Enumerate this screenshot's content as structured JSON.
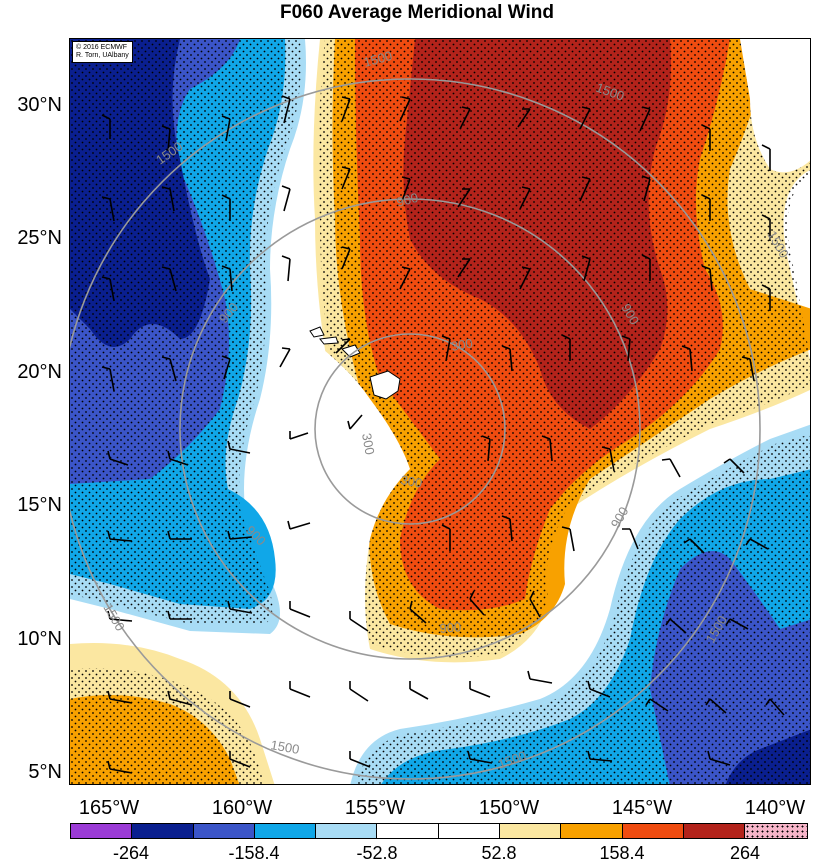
{
  "title": "F060 Average Meridional Wind",
  "credit": {
    "line1": "© 2016 ECMWF",
    "line2": "R. Torn, UAlbany"
  },
  "lat_labels": [
    "30°N",
    "25°N",
    "20°N",
    "15°N",
    "10°N",
    "5°N"
  ],
  "lon_labels": [
    "165°W",
    "160°W",
    "155°W",
    "150°W",
    "145°W",
    "140°W"
  ],
  "contour_labels": {
    "c1500a": "1500",
    "c1500b": "1500",
    "c1500c": "1500",
    "c1500d": "1500",
    "c1500e": "1500",
    "c1500f": "1500",
    "c1500g": "1500",
    "c900a": "900",
    "c900b": "900",
    "c900c": "900",
    "c900d": "900",
    "c900e": "900",
    "c900f": "900",
    "c300a": "300",
    "c300b": "300",
    "c300c": "300"
  },
  "colorbar": {
    "colors": [
      "#9b3bd6",
      "#0a1f8f",
      "#3b55c8",
      "#10a7e8",
      "#a8dcf5",
      "#ffffff",
      "#ffffff",
      "#fbe7a1",
      "#f8a100",
      "#f04c10",
      "#b3231b",
      "#f6b4c8"
    ],
    "labels": [
      "-264",
      "-158.4",
      "-52.8",
      "52.8",
      "158.4",
      "264"
    ]
  },
  "colors": {
    "dark_blue": "#0a1f8f",
    "mid_blue": "#3b55c8",
    "light_blue": "#10a7e8",
    "pale_blue": "#a8dcf5",
    "pale_yellow": "#fbe7a1",
    "orange": "#f8a100",
    "red_orange": "#f04c10",
    "dark_red": "#b3231b"
  }
}
